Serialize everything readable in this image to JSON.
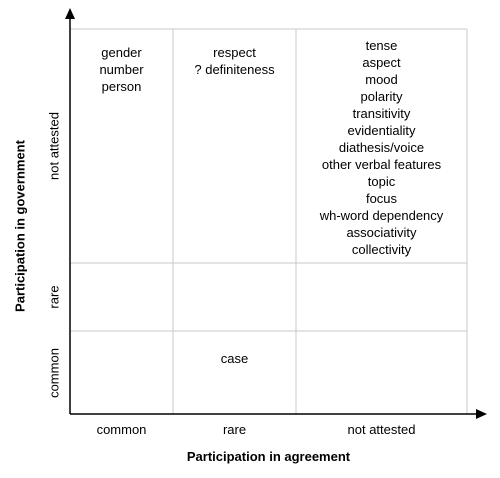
{
  "axes": {
    "x_label": "Participation in agreement",
    "y_label": "Participation in government",
    "x_ticks": [
      "common",
      "rare",
      "not attested"
    ],
    "y_ticks": [
      "not attested",
      "rare",
      "common"
    ]
  },
  "cells": {
    "not_attested_common": [
      "gender",
      "number",
      "person"
    ],
    "not_attested_rare": [
      "respect",
      "? definiteness"
    ],
    "not_attested_not_attested": [
      "tense",
      "aspect",
      "mood",
      "polarity",
      "transitivity",
      "evidentiality",
      "diathesis/voice",
      "other verbal features",
      "topic",
      "focus",
      "wh-word dependency",
      "associativity",
      "collectivity"
    ],
    "common_rare": [
      "case"
    ]
  }
}
